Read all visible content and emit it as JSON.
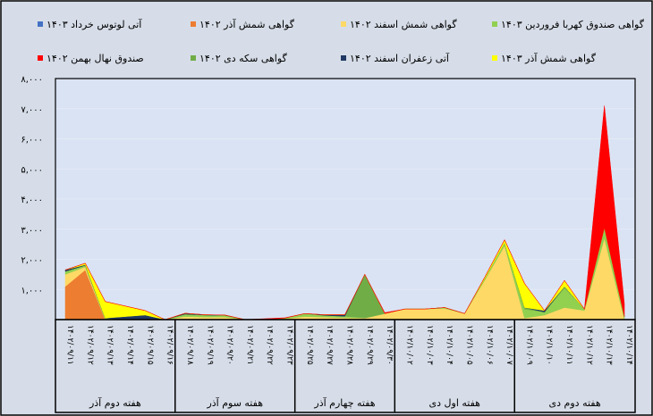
{
  "chart_data": {
    "type": "area",
    "stacked": true,
    "title": "",
    "xlabel": "",
    "ylabel": "",
    "ylim": [
      0,
      8000
    ],
    "yticks": [
      0,
      1000,
      2000,
      3000,
      4000,
      5000,
      6000,
      7000,
      8000
    ],
    "ytick_labels": [
      "",
      "۱,۰۰۰",
      "۲,۰۰۰",
      "۳,۰۰۰",
      "۴,۰۰۰",
      "۵,۰۰۰",
      "۶,۰۰۰",
      "۷,۰۰۰",
      "۸,۰۰۰"
    ],
    "grid": true,
    "legend_position": "top",
    "categories": [
      "۱۴۰۲/۰۹/۱۱",
      "۱۴۰۲/۰۹/۱۲",
      "۱۴۰۲/۰۹/۱۳",
      "۱۴۰۲/۰۹/۱۴",
      "۱۴۰۲/۰۹/۱۵",
      "۱۴۰۲/۰۹/۱۶",
      "۱۴۰۲/۰۹/۱۸",
      "۱۴۰۲/۰۹/۱۹",
      "۱۴۰۲/۰۹/۲۰",
      "۱۴۰۲/۰۹/۲۱",
      "۱۴۰۲/۰۹/۲۲",
      "۱۴۰۲/۰۹/۲۳",
      "۱۴۰۲/۰۹/۲۵",
      "۱۴۰۲/۰۹/۲۷",
      "۱۴۰۲/۰۹/۲۸",
      "۱۴۰۲/۰۹/۲۹",
      "۱۴۰۲/۰۹/۳۰",
      "۱۴۰۲/۱۰/۰۲",
      "۱۴۰۲/۱۰/۰۳",
      "۱۴۰۲/۱۰/۰۴",
      "۱۴۰۲/۱۰/۰۵",
      "۱۴۰۲/۱۰/۰۶",
      "۱۴۰۲/۱۰/۰۷",
      "۱۴۰۲/۱۰/۰۹",
      "۱۴۰۲/۱۰/۱۰",
      "۱۴۰۲/۱۰/۱۱",
      "۱۴۰۲/۱۰/۱۲",
      "۱۴۰۲/۱۰/۱۳",
      "۱۴۰۲/۱۰/۱۴"
    ],
    "groups": [
      {
        "label": "هفته دوم آذر",
        "count": 6
      },
      {
        "label": "هفته سوم آذر",
        "count": 6
      },
      {
        "label": "هفته چهارم آذر",
        "count": 5
      },
      {
        "label": "هفته اول دی",
        "count": 6
      },
      {
        "label": "هفته دوم دی",
        "count": 6
      }
    ],
    "series": [
      {
        "name": "گواهی شمش آذر ۱۴۰۲",
        "color": "#ed7d31",
        "values": [
          1100,
          1650,
          0,
          0,
          0,
          0,
          0,
          0,
          0,
          0,
          0,
          0,
          0,
          0,
          0,
          0,
          0,
          0,
          0,
          0,
          0,
          0,
          0,
          0,
          0,
          0,
          0,
          0,
          0
        ]
      },
      {
        "name": "گواهی شمش اسفند ۱۴۰۲",
        "color": "#ffd966",
        "values": [
          400,
          100,
          0,
          0,
          0,
          0,
          100,
          80,
          80,
          0,
          0,
          30,
          100,
          80,
          60,
          50,
          200,
          350,
          350,
          370,
          200,
          1300,
          2450,
          50,
          150,
          400,
          300,
          2700,
          0
        ]
      },
      {
        "name": "گواهی صندوق کهربا فروردین ۱۴۰۳",
        "color": "#92d050",
        "values": [
          100,
          50,
          30,
          0,
          0,
          0,
          80,
          70,
          60,
          0,
          0,
          20,
          100,
          60,
          50,
          0,
          0,
          0,
          0,
          30,
          0,
          50,
          100,
          300,
          100,
          650,
          50,
          350,
          100
        ]
      },
      {
        "name": "گواهی سکه دی ۱۴۰۲",
        "color": "#70ad47",
        "values": [
          0,
          0,
          20,
          0,
          0,
          0,
          0,
          0,
          0,
          0,
          0,
          0,
          0,
          0,
          0,
          1450,
          0,
          0,
          0,
          0,
          0,
          0,
          0,
          50,
          0,
          50,
          0,
          0,
          0
        ]
      },
      {
        "name": "آتی زعفران اسفند ۱۴۰۲",
        "color": "#203864",
        "values": [
          50,
          20,
          0,
          100,
          150,
          0,
          30,
          10,
          10,
          0,
          0,
          0,
          0,
          20,
          50,
          0,
          0,
          0,
          0,
          0,
          0,
          0,
          0,
          0,
          50,
          0,
          0,
          0,
          0
        ]
      },
      {
        "name": "آتی لوتوس خرداد ۱۴۰۳",
        "color": "#4472c4",
        "values": [
          0,
          0,
          0,
          0,
          0,
          0,
          0,
          0,
          0,
          0,
          0,
          0,
          0,
          0,
          0,
          0,
          0,
          0,
          0,
          0,
          0,
          0,
          0,
          0,
          0,
          0,
          0,
          0,
          0
        ]
      },
      {
        "name": "گواهی شمش آذر ۱۴۰۳",
        "color": "#ffff00",
        "values": [
          0,
          50,
          550,
          350,
          150,
          0,
          0,
          0,
          0,
          0,
          0,
          0,
          0,
          0,
          0,
          0,
          0,
          0,
          0,
          0,
          0,
          50,
          100,
          800,
          0,
          200,
          0,
          0,
          0
        ]
      },
      {
        "name": "صندوق نهال بهمن ۱۴۰۲",
        "color": "#ff0000",
        "values": [
          0,
          0,
          0,
          0,
          0,
          0,
          0,
          0,
          0,
          0,
          30,
          10,
          0,
          0,
          0,
          0,
          30,
          0,
          0,
          0,
          0,
          0,
          0,
          0,
          0,
          0,
          0,
          4050,
          430
        ]
      }
    ]
  },
  "legend": {
    "rows": [
      [
        {
          "idx": 5
        },
        {
          "idx": 0
        },
        {
          "idx": 1
        },
        {
          "idx": 2
        }
      ],
      [
        {
          "idx": 7
        },
        {
          "idx": 3
        },
        {
          "idx": 4
        },
        {
          "idx": 6
        }
      ]
    ]
  }
}
